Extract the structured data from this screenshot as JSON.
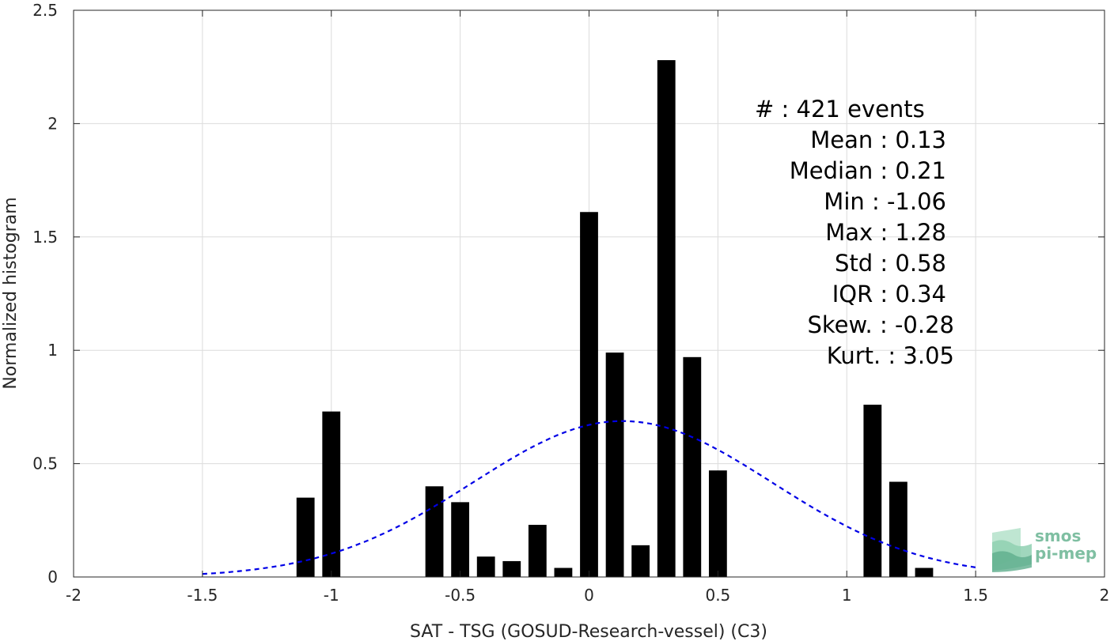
{
  "chart_data": {
    "type": "bar",
    "xlabel": "SAT - TSG (GOSUD-Research-vessel) (C3)",
    "ylabel": "Normalized histogram",
    "xlim": [
      -2,
      2
    ],
    "ylim": [
      0,
      2.5
    ],
    "xticks": [
      -2,
      -1.5,
      -1,
      -0.5,
      0,
      0.5,
      1,
      1.5,
      2
    ],
    "xtick_labels": [
      "-2",
      "-1.5",
      "-1",
      "-0.5",
      "0",
      "0.5",
      "1",
      "1.5",
      "2"
    ],
    "yticks": [
      0,
      0.5,
      1,
      1.5,
      2,
      2.5
    ],
    "ytick_labels": [
      "0",
      "0.5",
      "1",
      "1.5",
      "2",
      "2.5"
    ],
    "grid": true,
    "bar_width": 0.07,
    "bars": [
      {
        "x": -1.1,
        "value": 0.35
      },
      {
        "x": -1.0,
        "value": 0.73
      },
      {
        "x": -0.6,
        "value": 0.4
      },
      {
        "x": -0.5,
        "value": 0.33
      },
      {
        "x": -0.4,
        "value": 0.09
      },
      {
        "x": -0.3,
        "value": 0.07
      },
      {
        "x": -0.2,
        "value": 0.23
      },
      {
        "x": -0.1,
        "value": 0.04
      },
      {
        "x": 0.0,
        "value": 1.61
      },
      {
        "x": 0.1,
        "value": 0.99
      },
      {
        "x": 0.2,
        "value": 0.14
      },
      {
        "x": 0.3,
        "value": 2.28
      },
      {
        "x": 0.4,
        "value": 0.97
      },
      {
        "x": 0.5,
        "value": 0.47
      },
      {
        "x": 1.1,
        "value": 0.76
      },
      {
        "x": 1.2,
        "value": 0.42
      },
      {
        "x": 1.3,
        "value": 0.04
      }
    ],
    "bar_color": "#000000",
    "fit_curve": {
      "type": "normal",
      "mean": 0.13,
      "std": 0.58,
      "scale": 1.0,
      "x_range": [
        -1.5,
        1.5
      ],
      "color": "#0000e6",
      "style": "dashed"
    },
    "annotations": [
      "#  : 421 events",
      "Mean : 0.13",
      "Median : 0.21",
      "Min : -1.06",
      "Max : 1.28",
      "Std : 0.58",
      "IQR : 0.34",
      "Skew. : -0.28",
      "Kurt. : 3.05"
    ]
  },
  "logo": {
    "line1": "smos",
    "line2": "pi-mep"
  }
}
